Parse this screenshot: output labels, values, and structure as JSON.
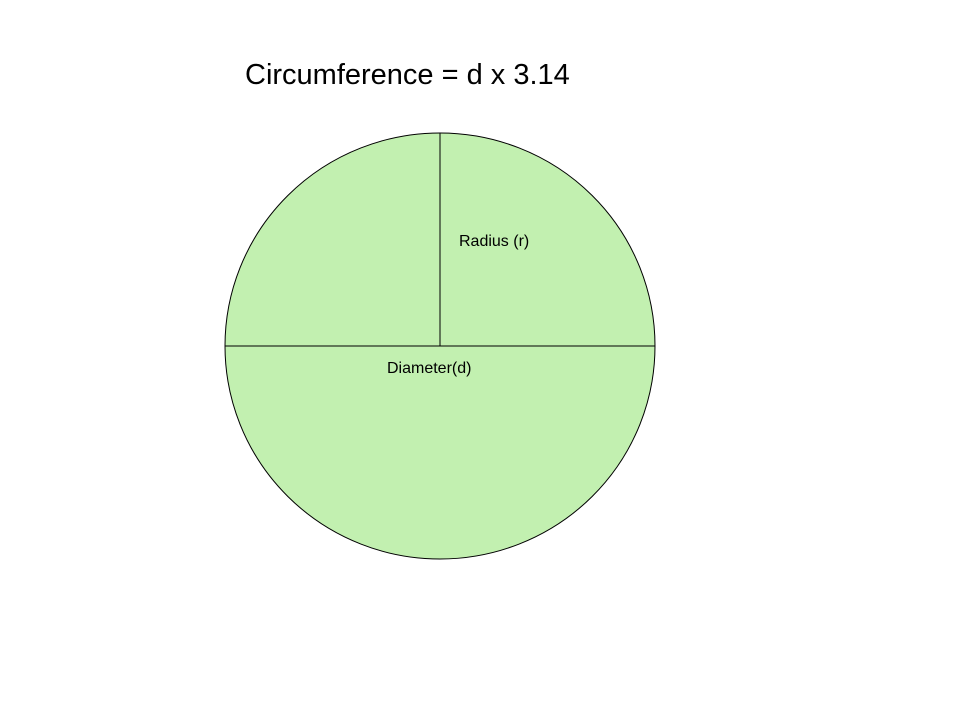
{
  "title": "Circumference = d x 3.14",
  "labels": {
    "radius": "Radius (r)",
    "diameter": "Diameter(d)"
  },
  "colors": {
    "circle_fill": "#c2f0b0",
    "stroke": "#000000",
    "background": "#ffffff"
  }
}
